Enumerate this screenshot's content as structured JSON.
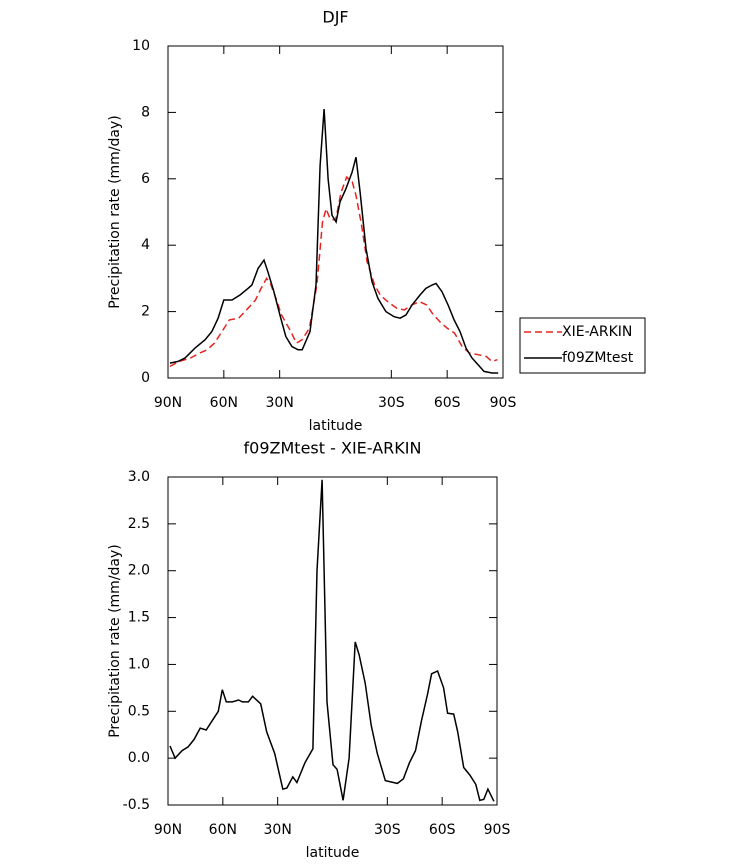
{
  "chart_data": [
    {
      "type": "line",
      "title": "DJF",
      "xlabel": "latitude",
      "ylabel": "Precipitation rate (mm/day)",
      "xlim": [
        90,
        -90
      ],
      "xticks": [
        {
          "value": 90,
          "label": "90N"
        },
        {
          "value": 60,
          "label": "60N"
        },
        {
          "value": 30,
          "label": "30N"
        },
        {
          "value": -30,
          "label": "30S"
        },
        {
          "value": -60,
          "label": "60S"
        },
        {
          "value": -90,
          "label": "90S"
        }
      ],
      "ylim": [
        0,
        10
      ],
      "yticks": [
        0,
        2,
        4,
        6,
        8,
        10
      ],
      "legend": "right",
      "series": [
        {
          "name": "XIE-ARKIN",
          "color": "#e8231f",
          "dashed": true,
          "x": [
            89,
            84,
            78,
            73,
            69,
            65,
            61,
            57,
            52,
            47,
            43,
            40,
            37,
            35,
            32,
            29,
            24,
            21,
            18,
            14,
            10,
            7,
            5,
            3,
            0,
            -3,
            -6,
            -9,
            -11,
            -14,
            -17,
            -21,
            -24,
            -28,
            -33,
            -37,
            -41,
            -45,
            -49,
            -52,
            -56,
            -60,
            -64,
            -68,
            -72,
            -77,
            -81,
            -84,
            -87
          ],
          "values": [
            0.35,
            0.5,
            0.6,
            0.75,
            0.85,
            1.05,
            1.4,
            1.75,
            1.8,
            2.1,
            2.35,
            2.7,
            3.0,
            2.85,
            2.4,
            1.9,
            1.4,
            1.05,
            1.15,
            1.5,
            2.8,
            4.7,
            5.1,
            4.8,
            4.75,
            5.6,
            6.05,
            5.9,
            5.5,
            4.6,
            3.5,
            2.8,
            2.5,
            2.3,
            2.1,
            2.05,
            2.2,
            2.3,
            2.2,
            1.95,
            1.7,
            1.5,
            1.35,
            0.95,
            0.75,
            0.7,
            0.65,
            0.5,
            0.55
          ]
        },
        {
          "name": "f09ZMtest",
          "color": "#000000",
          "dashed": false,
          "x": [
            89,
            84.6,
            80.9,
            75.5,
            70.1,
            66.4,
            63.1,
            60,
            55.6,
            51.3,
            47,
            44.9,
            41.6,
            38.4,
            36.3,
            33.1,
            29.9,
            26.7,
            23.4,
            20.1,
            17.9,
            13.7,
            10.5,
            8.3,
            6.1,
            4,
            1.9,
            -0.3,
            -2.4,
            -5.6,
            -8.9,
            -11,
            -13.2,
            -16.4,
            -19.6,
            -22.8,
            -27.1,
            -31.4,
            -34.7,
            -37.9,
            -41.1,
            -45.4,
            -48.6,
            -51.9,
            -54,
            -57.2,
            -60.5,
            -63.7,
            -66.9,
            -70.1,
            -73.4,
            -76.6,
            -79.8,
            -84.1,
            -87.4
          ],
          "values": [
            0.45,
            0.5,
            0.6,
            0.9,
            1.15,
            1.4,
            1.8,
            2.35,
            2.35,
            2.5,
            2.7,
            2.8,
            3.3,
            3.55,
            3.2,
            2.6,
            1.9,
            1.25,
            0.95,
            0.85,
            0.85,
            1.4,
            2.8,
            6.4,
            8.1,
            6.0,
            4.9,
            4.7,
            5.3,
            5.7,
            6.2,
            6.65,
            5.6,
            3.9,
            2.9,
            2.4,
            2.0,
            1.85,
            1.8,
            1.9,
            2.2,
            2.5,
            2.7,
            2.8,
            2.85,
            2.6,
            2.2,
            1.75,
            1.4,
            0.9,
            0.6,
            0.4,
            0.2,
            0.15,
            0.15
          ]
        }
      ]
    },
    {
      "type": "line",
      "title": "f09ZMtest - XIE-ARKIN",
      "xlabel": "latitude",
      "ylabel": "Precipitation rate (mm/day)",
      "xlim": [
        90,
        -90
      ],
      "xticks": [
        {
          "value": 90,
          "label": "90N"
        },
        {
          "value": 60,
          "label": "60N"
        },
        {
          "value": 30,
          "label": "30N"
        },
        {
          "value": -30,
          "label": "30S"
        },
        {
          "value": -60,
          "label": "60S"
        },
        {
          "value": -90,
          "label": "90S"
        }
      ],
      "ylim": [
        -0.5,
        3.0
      ],
      "yticks": [
        -0.5,
        {
          "value": 0,
          "label": "0.0"
        },
        0.5,
        {
          "value": 1,
          "label": "1.0"
        },
        1.5,
        {
          "value": 2,
          "label": "2.0"
        },
        2.5,
        {
          "value": 3,
          "label": "3.0"
        }
      ],
      "series": [
        {
          "color": "#000000",
          "dashed": false,
          "x": [
            88.9,
            86.1,
            82.3,
            79,
            75.7,
            72.4,
            69.1,
            65.8,
            62.5,
            60.3,
            58.1,
            54.8,
            51.4,
            49.3,
            46,
            43.7,
            39.3,
            36,
            31.6,
            27.2,
            25,
            21.7,
            19.5,
            15.1,
            10.7,
            8.5,
            5.7,
            3,
            -0.3,
            -2.5,
            -5.8,
            -9.1,
            -12.4,
            -14.6,
            -17.9,
            -21.2,
            -24.5,
            -28.9,
            -33.3,
            -35.5,
            -38.8,
            -42.1,
            -45.4,
            -48.7,
            -52,
            -54.2,
            -57.5,
            -60.8,
            -63,
            -66.3,
            -68.5,
            -71.8,
            -75.1,
            -78.4,
            -80.6,
            -82.8,
            -85,
            -88.3
          ],
          "values": [
            0.13,
            0.0,
            0.08,
            0.12,
            0.2,
            0.32,
            0.3,
            0.4,
            0.5,
            0.73,
            0.6,
            0.6,
            0.62,
            0.6,
            0.6,
            0.66,
            0.58,
            0.28,
            0.05,
            -0.33,
            -0.32,
            -0.2,
            -0.26,
            -0.05,
            0.1,
            2.0,
            2.97,
            0.6,
            -0.07,
            -0.12,
            -0.45,
            0.0,
            1.24,
            1.1,
            0.8,
            0.35,
            0.05,
            -0.24,
            -0.26,
            -0.27,
            -0.22,
            -0.05,
            0.08,
            0.4,
            0.68,
            0.9,
            0.93,
            0.75,
            0.48,
            0.47,
            0.28,
            -0.1,
            -0.18,
            -0.28,
            -0.45,
            -0.44,
            -0.33,
            -0.46
          ]
        }
      ]
    }
  ]
}
